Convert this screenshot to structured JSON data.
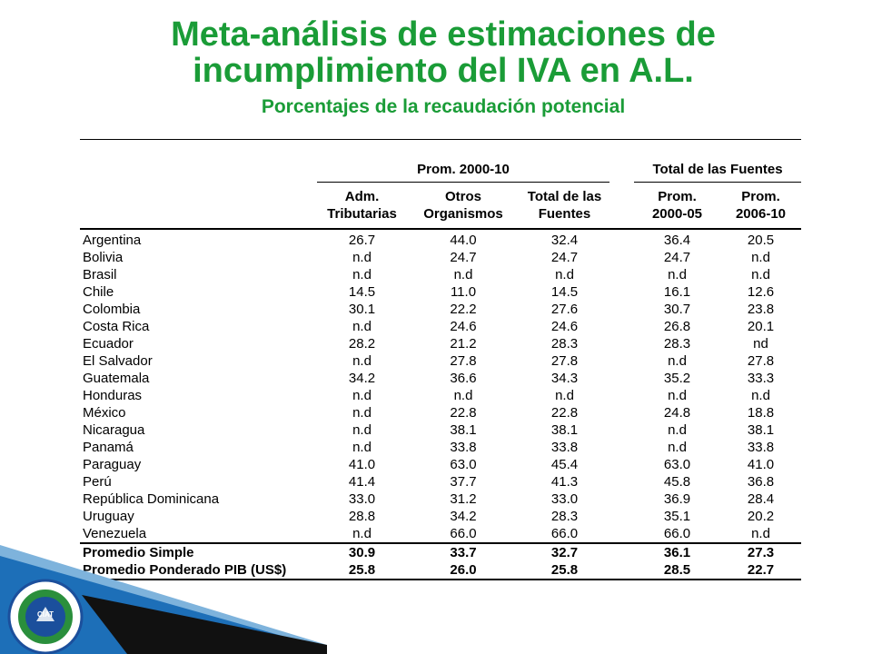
{
  "title_line1": "Meta-análisis de estimaciones de",
  "title_line2": "incumplimiento del IVA en A.L.",
  "subtitle": "Porcentajes de la recaudación potencial",
  "table": {
    "group_headers": {
      "prom": "Prom. 2000-10",
      "total": "Total de las Fuentes"
    },
    "col_headers": {
      "adm": [
        "Adm.",
        "Tributarias"
      ],
      "otros": [
        "Otros",
        "Organismos"
      ],
      "total": [
        "Total de las",
        "Fuentes"
      ],
      "p0005": [
        "Prom.",
        "2000-05"
      ],
      "p0610": [
        "Prom.",
        "2006-10"
      ]
    },
    "rows": [
      {
        "country": "Argentina",
        "v": [
          "26.7",
          "44.0",
          "32.4",
          "36.4",
          "20.5"
        ]
      },
      {
        "country": "Bolivia",
        "v": [
          "n.d",
          "24.7",
          "24.7",
          "24.7",
          "n.d"
        ]
      },
      {
        "country": "Brasil",
        "v": [
          "n.d",
          "n.d",
          "n.d",
          "n.d",
          "n.d"
        ]
      },
      {
        "country": "Chile",
        "v": [
          "14.5",
          "11.0",
          "14.5",
          "16.1",
          "12.6"
        ]
      },
      {
        "country": "Colombia",
        "v": [
          "30.1",
          "22.2",
          "27.6",
          "30.7",
          "23.8"
        ]
      },
      {
        "country": "Costa Rica",
        "v": [
          "n.d",
          "24.6",
          "24.6",
          "26.8",
          "20.1"
        ]
      },
      {
        "country": "Ecuador",
        "v": [
          "28.2",
          "21.2",
          "28.3",
          "28.3",
          "nd"
        ]
      },
      {
        "country": "El Salvador",
        "v": [
          "n.d",
          "27.8",
          "27.8",
          "n.d",
          "27.8"
        ]
      },
      {
        "country": "Guatemala",
        "v": [
          "34.2",
          "36.6",
          "34.3",
          "35.2",
          "33.3"
        ]
      },
      {
        "country": "Honduras",
        "v": [
          "n.d",
          "n.d",
          "n.d",
          "n.d",
          "n.d"
        ]
      },
      {
        "country": "México",
        "v": [
          "n.d",
          "22.8",
          "22.8",
          "24.8",
          "18.8"
        ]
      },
      {
        "country": "Nicaragua",
        "v": [
          "n.d",
          "38.1",
          "38.1",
          "n.d",
          "38.1"
        ]
      },
      {
        "country": "Panamá",
        "v": [
          "n.d",
          "33.8",
          "33.8",
          "n.d",
          "33.8"
        ]
      },
      {
        "country": "Paraguay",
        "v": [
          "41.0",
          "63.0",
          "45.4",
          "63.0",
          "41.0"
        ]
      },
      {
        "country": "Perú",
        "v": [
          "41.4",
          "37.7",
          "41.3",
          "45.8",
          "36.8"
        ]
      },
      {
        "country": "República Dominicana",
        "v": [
          "33.0",
          "31.2",
          "33.0",
          "36.9",
          "28.4"
        ]
      },
      {
        "country": "Uruguay",
        "v": [
          "28.8",
          "34.2",
          "28.3",
          "35.1",
          "20.2"
        ]
      },
      {
        "country": "Venezuela",
        "v": [
          "n.d",
          "66.0",
          "66.0",
          "66.0",
          "n.d"
        ]
      }
    ],
    "summary": [
      {
        "label": "Promedio Simple",
        "v": [
          "30.9",
          "33.7",
          "32.7",
          "36.1",
          "27.3"
        ]
      },
      {
        "label": "Promedio Ponderado PIB (US$)",
        "v": [
          "25.8",
          "26.0",
          "25.8",
          "28.5",
          "22.7"
        ]
      }
    ]
  },
  "colors": {
    "title_green": "#1a9c37",
    "logo_blue": "#1b4f9c",
    "logo_green": "#2a8f3c"
  },
  "logo": {
    "center_text": "CIAT"
  }
}
